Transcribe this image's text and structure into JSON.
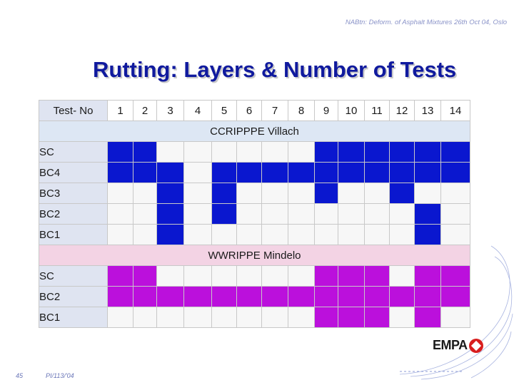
{
  "slide": {
    "header_note": "NABtn: Deform. of Asphalt Mixtures 26th Oct 04, Oslo",
    "title": "Rutting: Layers & Number of Tests",
    "page_number": "45",
    "footer_id": "PI/113/'04",
    "logo_text": "EMPA"
  },
  "table": {
    "corner_label": "Test- No",
    "test_numbers": [
      "1",
      "2",
      "3",
      "4",
      "5",
      "6",
      "7",
      "8",
      "9",
      "10",
      "11",
      "12",
      "13",
      "14"
    ],
    "section_1": {
      "title": "CCRIPPPE  Villach",
      "fill_color": "#0a17cf",
      "rows": [
        {
          "label": "SC",
          "tested": [
            1,
            2,
            9,
            10,
            11,
            12,
            13,
            14
          ]
        },
        {
          "label": "BC4",
          "tested": [
            1,
            2,
            3,
            5,
            6,
            7,
            8,
            9,
            10,
            11,
            12,
            13,
            14
          ]
        },
        {
          "label": "BC3",
          "tested": [
            3,
            5,
            9,
            12
          ]
        },
        {
          "label": "BC2",
          "tested": [
            3,
            5,
            13
          ]
        },
        {
          "label": "BC1",
          "tested": [
            3,
            13
          ]
        }
      ]
    },
    "section_2": {
      "title": "WWRIPPE  Mindelo",
      "fill_color": "#bb10dc",
      "rows": [
        {
          "label": "SC",
          "tested": [
            1,
            2,
            9,
            10,
            11,
            13,
            14
          ]
        },
        {
          "label": "BC2",
          "tested": [
            1,
            2,
            3,
            4,
            5,
            6,
            7,
            8,
            9,
            10,
            11,
            12,
            13,
            14
          ]
        },
        {
          "label": "BC1",
          "tested": [
            9,
            10,
            11,
            13
          ]
        }
      ]
    }
  }
}
